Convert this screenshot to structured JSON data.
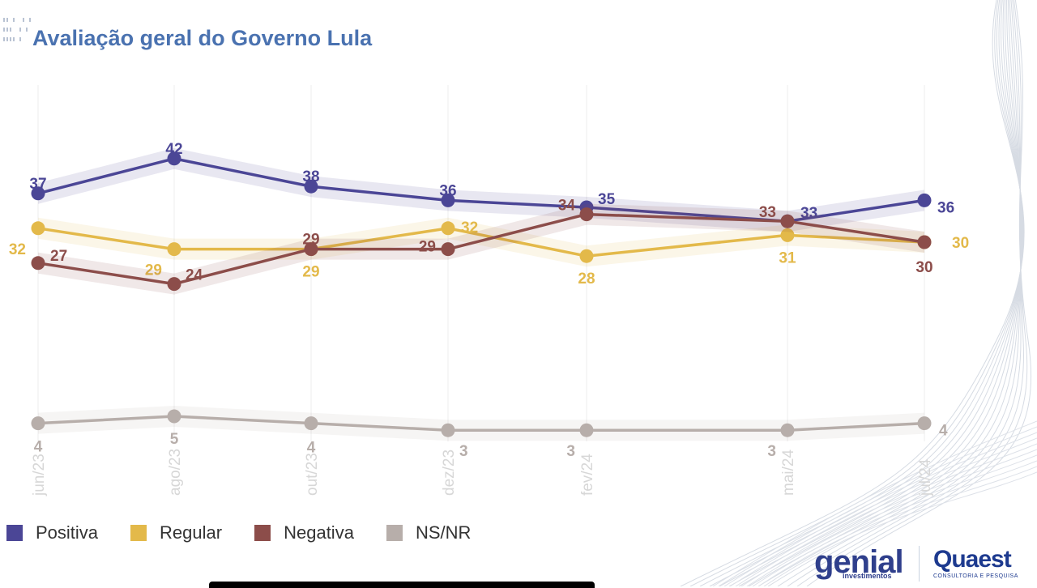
{
  "title": "Avaliação geral do Governo Lula",
  "chart_data": {
    "type": "line",
    "title": "Avaliação geral do Governo Lula",
    "categories": [
      "jun/23",
      "ago/23",
      "out/23",
      "dez/23",
      "fev/24",
      "mai/24",
      "jul/24"
    ],
    "ylim": [
      0,
      45
    ],
    "grid": "vertical lines at each category",
    "legend_position": "bottom-left",
    "series": [
      {
        "name": "Positiva",
        "color": "#4b4696",
        "values": [
          37,
          42,
          38,
          36,
          35,
          33,
          36
        ]
      },
      {
        "name": "Regular",
        "color": "#e3b94a",
        "values": [
          32,
          29,
          29,
          32,
          28,
          31,
          30
        ]
      },
      {
        "name": "Negativa",
        "color": "#8c4d4a",
        "values": [
          27,
          24,
          29,
          29,
          34,
          33,
          30
        ]
      },
      {
        "name": "NS/NR",
        "color": "#b7aeaa",
        "values": [
          4,
          5,
          4,
          3,
          3,
          3,
          4
        ]
      }
    ]
  },
  "legend": [
    {
      "label": "Positiva",
      "color": "#4b4696"
    },
    {
      "label": "Regular",
      "color": "#e3b94a"
    },
    {
      "label": "Negativa",
      "color": "#8c4d4a"
    },
    {
      "label": "NS/NR",
      "color": "#b7aeaa"
    }
  ],
  "logos": {
    "genial": "genial",
    "genial_sub": "investimentos",
    "quaest": "Quaest",
    "quaest_sub": "CONSULTORIA E PESQUISA"
  }
}
